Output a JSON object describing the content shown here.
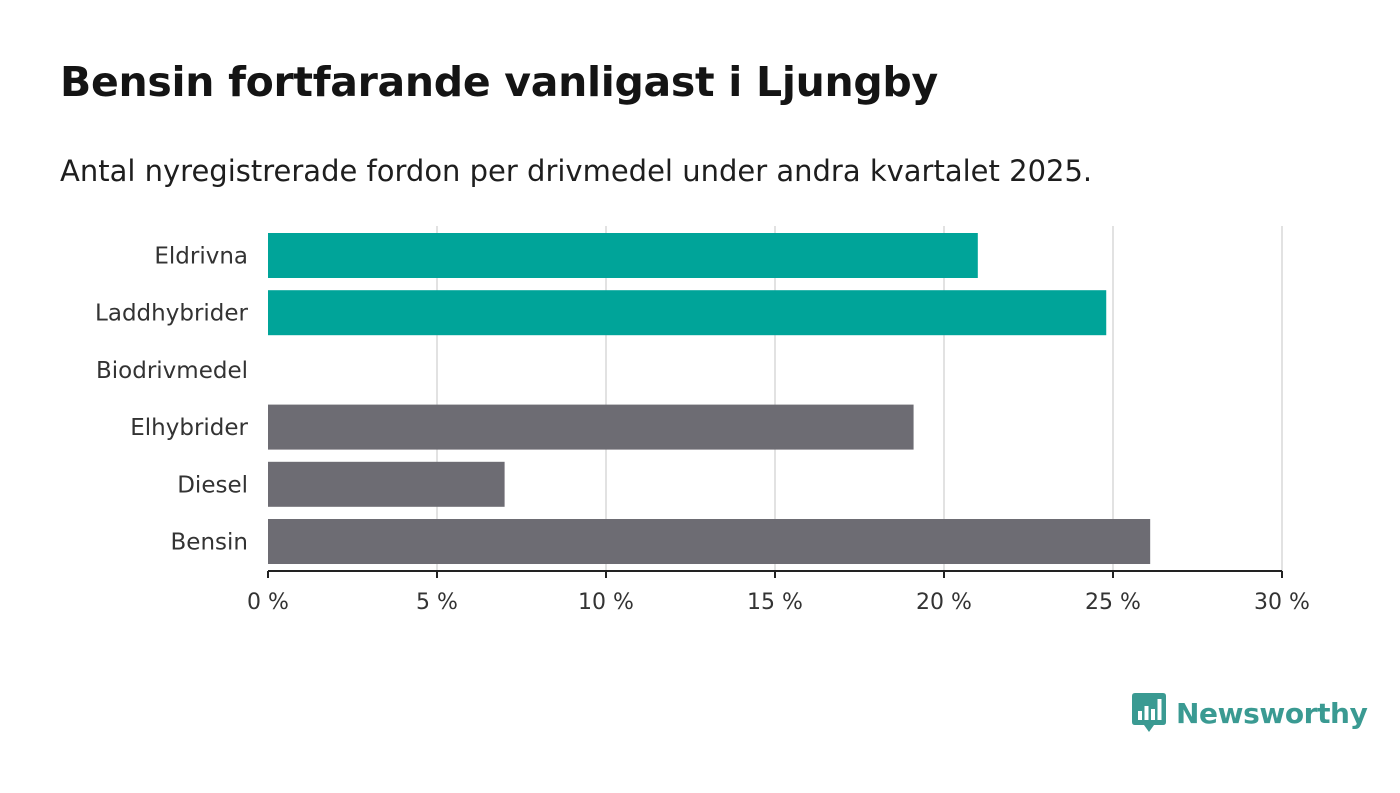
{
  "title": "Bensin fortfarande vanligast i Ljungby",
  "subtitle": "Antal nyregistrerade fordon per drivmedel under andra kvartalet 2025.",
  "brand": {
    "name": "Newsworthy",
    "color": "#3a9a92",
    "icon": "newsworthy-logo-icon"
  },
  "colors": {
    "electric": "#00a499",
    "other": "#6d6c73",
    "grid": "#d9d9d9",
    "axis": "#222222"
  },
  "chart_data": {
    "type": "bar",
    "orientation": "horizontal",
    "categories": [
      "Eldrivna",
      "Laddhybrider",
      "Biodrivmedel",
      "Elhybrider",
      "Diesel",
      "Bensin"
    ],
    "values": [
      21.0,
      24.8,
      0,
      19.1,
      7.0,
      26.1
    ],
    "bar_colors": [
      "#00a499",
      "#00a499",
      "#00a499",
      "#6d6c73",
      "#6d6c73",
      "#6d6c73"
    ],
    "xlim": [
      0,
      30
    ],
    "xticks": [
      0,
      5,
      10,
      15,
      20,
      25,
      30
    ],
    "xtick_labels": [
      "0 %",
      "5 %",
      "10 %",
      "15 %",
      "20 %",
      "25 %",
      "30 %"
    ],
    "grid": true,
    "legend": false
  }
}
